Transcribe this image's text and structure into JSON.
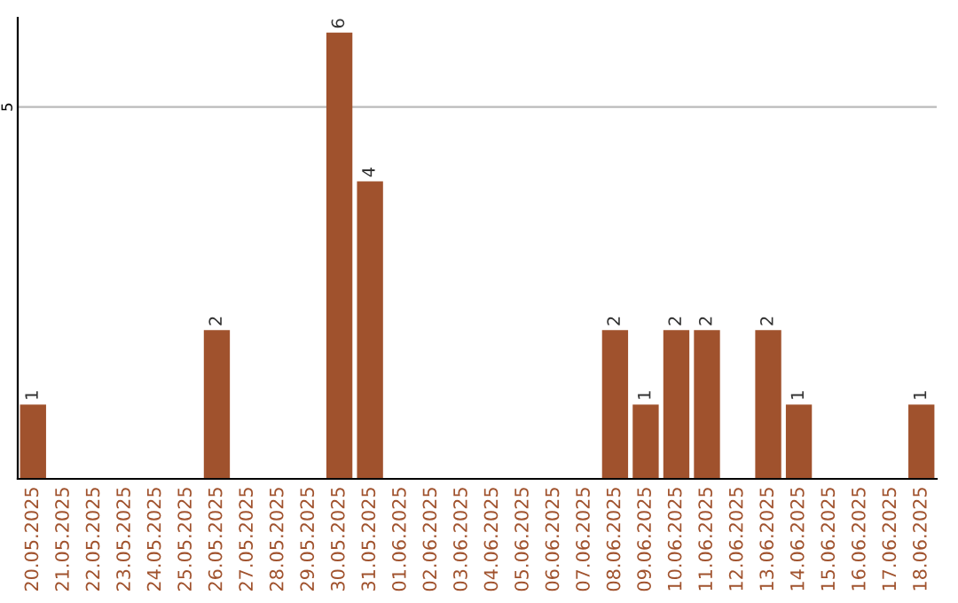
{
  "chart_data": {
    "type": "bar",
    "categories": [
      "20.05.2025",
      "21.05.2025",
      "22.05.2025",
      "23.05.2025",
      "24.05.2025",
      "25.05.2025",
      "26.05.2025",
      "27.05.2025",
      "28.05.2025",
      "29.05.2025",
      "30.05.2025",
      "31.05.2025",
      "01.06.2025",
      "02.06.2025",
      "03.06.2025",
      "04.06.2025",
      "05.06.2025",
      "06.06.2025",
      "07.06.2025",
      "08.06.2025",
      "09.06.2025",
      "10.06.2025",
      "11.06.2025",
      "12.06.2025",
      "13.06.2025",
      "14.06.2025",
      "15.06.2025",
      "16.06.2025",
      "17.06.2025",
      "18.06.2025"
    ],
    "values": [
      1,
      0,
      0,
      0,
      0,
      0,
      2,
      0,
      0,
      0,
      6,
      4,
      0,
      0,
      0,
      0,
      0,
      0,
      0,
      2,
      1,
      2,
      2,
      0,
      2,
      1,
      0,
      0,
      0,
      1
    ],
    "value_labels": [
      "1",
      null,
      null,
      null,
      null,
      null,
      "2",
      null,
      null,
      null,
      "6",
      "4",
      null,
      null,
      null,
      null,
      null,
      null,
      null,
      "2",
      "1",
      "2",
      "2",
      null,
      "2",
      "1",
      null,
      null,
      null,
      "1"
    ],
    "color": "#a0522d",
    "ylim": [
      0,
      6.2
    ],
    "yticks": [
      5
    ],
    "grid": "y"
  }
}
